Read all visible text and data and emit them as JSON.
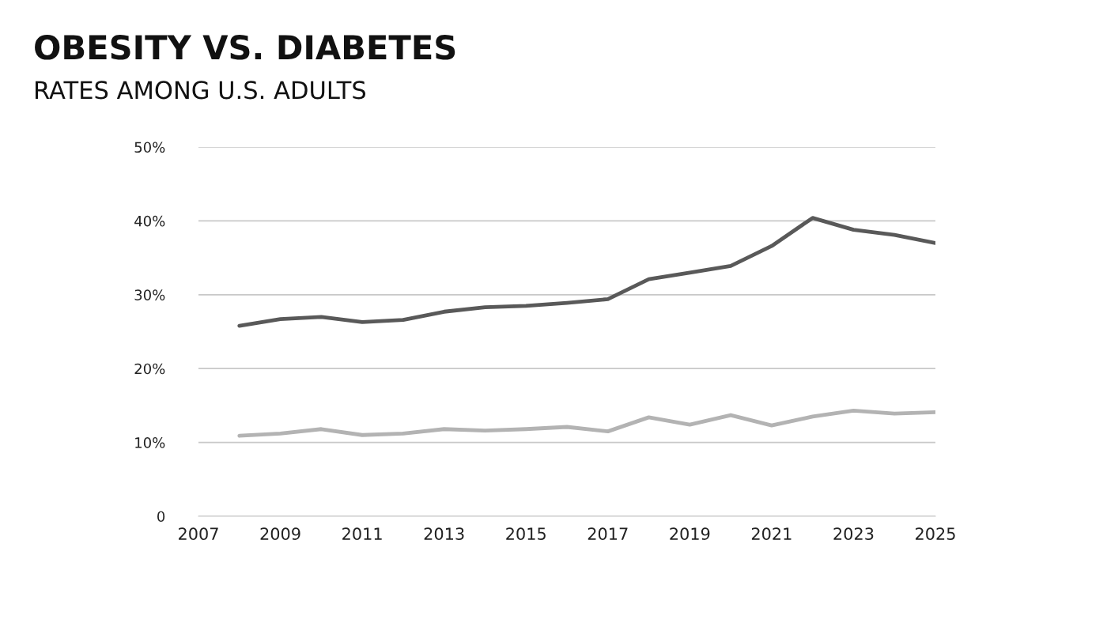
{
  "chart_data": {
    "type": "line",
    "title": "OBESITY VS. DIABETES",
    "subtitle": "RATES AMONG U.S. ADULTS",
    "x": [
      2008,
      2009,
      2010,
      2011,
      2012,
      2013,
      2014,
      2015,
      2016,
      2017,
      2018,
      2019,
      2020,
      2021,
      2022,
      2023,
      2024,
      2025
    ],
    "series": [
      {
        "color": "#595959",
        "values": [
          25.8,
          26.7,
          27.0,
          26.3,
          26.6,
          27.7,
          28.3,
          28.5,
          28.9,
          29.4,
          32.1,
          33.0,
          33.9,
          36.6,
          40.4,
          38.8,
          38.1,
          37.0
        ]
      },
      {
        "color": "#b3b3b3",
        "values": [
          10.9,
          11.2,
          11.8,
          11.0,
          11.2,
          11.8,
          11.6,
          11.8,
          12.1,
          11.5,
          13.4,
          12.4,
          13.7,
          12.3,
          13.5,
          14.3,
          13.9,
          14.1
        ]
      }
    ],
    "xlim": [
      2007,
      2025
    ],
    "xticks": [
      2007,
      2009,
      2011,
      2013,
      2015,
      2017,
      2019,
      2021,
      2023,
      2025
    ],
    "ylim": [
      0,
      50
    ],
    "yticks": [
      {
        "value": 0,
        "label": "0"
      },
      {
        "value": 10,
        "label": "10%"
      },
      {
        "value": 20,
        "label": "20%"
      },
      {
        "value": 30,
        "label": "30%"
      },
      {
        "value": 40,
        "label": "40%"
      },
      {
        "value": 50,
        "label": "50%"
      }
    ],
    "grid": "y",
    "marker": "none",
    "line_style": "solid"
  }
}
